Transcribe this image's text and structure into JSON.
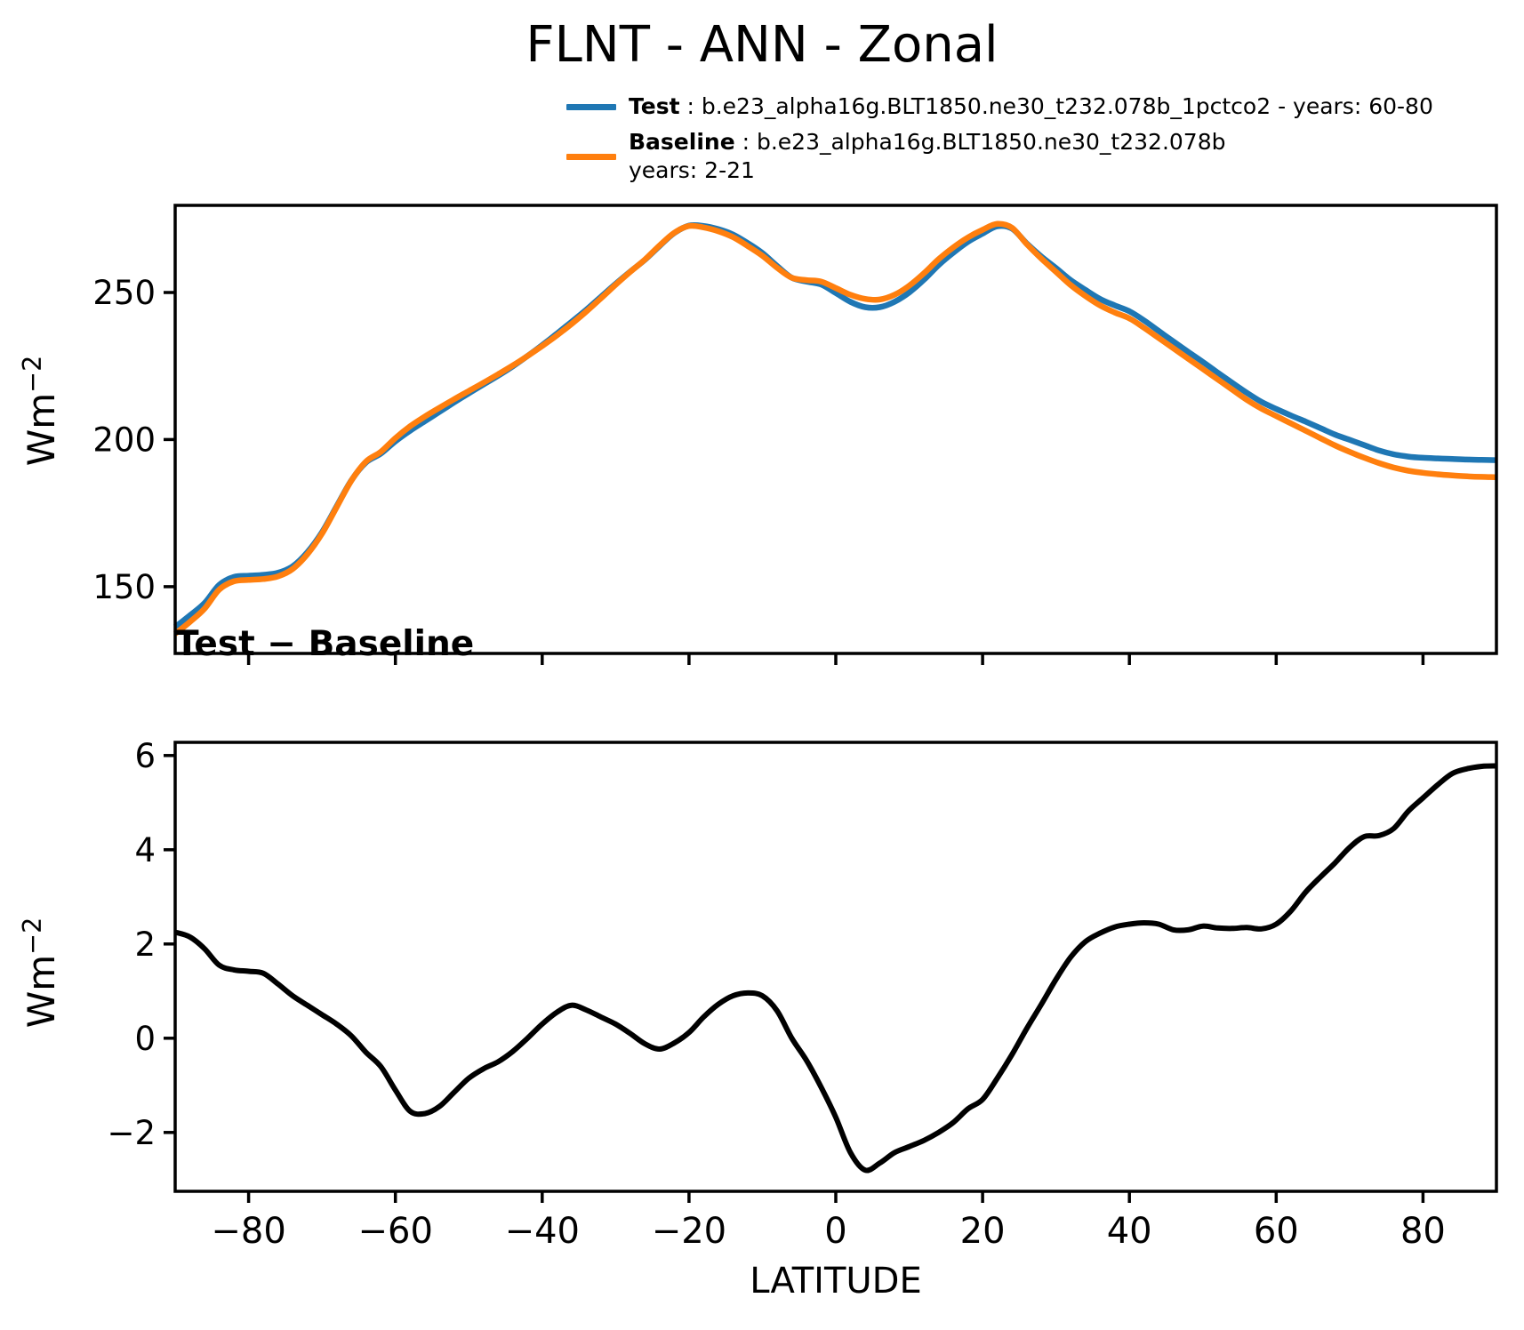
{
  "title": "FLNT - ANN - Zonal",
  "colors": {
    "test": "#1f77b4",
    "baseline": "#ff7f0e",
    "diff": "#000000",
    "axis": "#000000"
  },
  "legend": {
    "test_label": "Test",
    "test_rest": " : b.e23_alpha16g.BLT1850.ne30_t232.078b_1pctco2 - years: 60-80",
    "baseline_label": "Baseline",
    "baseline_rest": " : b.e23_alpha16g.BLT1850.ne30_t232.078b",
    "baseline_years": "years: 2-21"
  },
  "axis_labels": {
    "y_base": "Wm",
    "y_exp": "−2",
    "x_label": "LATITUDE"
  },
  "chart_data": [
    {
      "type": "line",
      "panel": "top",
      "title": "",
      "ylabel": "Wm−2",
      "xlabel": "",
      "xlim": [
        -90,
        90
      ],
      "ylim": [
        127.3,
        279.6
      ],
      "grid": false,
      "legend_position": "upper right, above axes",
      "x": [
        -90,
        -88,
        -86,
        -84,
        -82,
        -80,
        -78,
        -76,
        -74,
        -72,
        -70,
        -68,
        -66,
        -64,
        -62,
        -60,
        -58,
        -56,
        -54,
        -52,
        -50,
        -48,
        -46,
        -44,
        -42,
        -40,
        -38,
        -36,
        -34,
        -32,
        -30,
        -28,
        -26,
        -24,
        -22,
        -20,
        -18,
        -16,
        -14,
        -12,
        -10,
        -8,
        -6,
        -4,
        -2,
        0,
        2,
        4,
        6,
        8,
        10,
        12,
        14,
        16,
        18,
        20,
        22,
        24,
        26,
        28,
        30,
        32,
        34,
        36,
        38,
        40,
        42,
        44,
        46,
        48,
        50,
        52,
        54,
        56,
        58,
        60,
        62,
        64,
        66,
        68,
        70,
        72,
        74,
        76,
        78,
        80,
        82,
        84,
        86,
        88,
        90
      ],
      "yticks": {
        "values": [
          150,
          200,
          250
        ],
        "labels": [
          "150",
          "200",
          "250"
        ]
      },
      "xticks": {
        "values": [
          -80,
          -60,
          -40,
          -20,
          0,
          20,
          40,
          60,
          80
        ],
        "labels": []
      },
      "series": [
        {
          "name": "Test",
          "color_key": "test",
          "values": [
            136.3,
            140.2,
            144.4,
            150.6,
            153.3,
            153.7,
            154.0,
            154.7,
            156.9,
            161.7,
            168.5,
            177.3,
            186.1,
            192.2,
            195.2,
            199.4,
            203.0,
            206.2,
            209.4,
            212.6,
            215.7,
            218.7,
            221.7,
            224.9,
            228.4,
            232.1,
            236.0,
            240.0,
            244.1,
            248.5,
            252.9,
            257.1,
            261.1,
            265.8,
            270.2,
            272.7,
            272.6,
            271.5,
            269.7,
            266.8,
            263.4,
            259.0,
            255.0,
            253.7,
            252.7,
            249.8,
            246.8,
            245.0,
            245.0,
            246.8,
            250.0,
            254.3,
            259.3,
            263.5,
            267.2,
            270.0,
            272.5,
            271.7,
            266.7,
            262.2,
            258.3,
            254.2,
            250.9,
            247.8,
            245.6,
            243.6,
            240.5,
            236.9,
            233.3,
            229.8,
            226.4,
            222.8,
            219.3,
            215.9,
            212.8,
            210.4,
            208.2,
            206.1,
            203.9,
            201.7,
            199.9,
            198.1,
            196.3,
            195.0,
            194.2,
            193.8,
            193.6,
            193.4,
            193.2,
            193.1,
            193.0
          ]
        },
        {
          "name": "Baseline",
          "color_key": "baseline",
          "values": [
            134.0,
            138.0,
            142.5,
            149.0,
            151.8,
            152.3,
            152.6,
            153.5,
            156.0,
            161.0,
            168.0,
            177.0,
            186.0,
            192.5,
            195.8,
            200.5,
            204.5,
            207.8,
            210.8,
            213.7,
            216.5,
            219.3,
            222.2,
            225.2,
            228.4,
            231.8,
            235.4,
            239.3,
            243.5,
            248.0,
            252.6,
            257.0,
            261.2,
            266.0,
            270.3,
            272.6,
            272.1,
            270.8,
            268.8,
            265.8,
            262.5,
            258.4,
            255.0,
            254.2,
            253.7,
            251.5,
            249.2,
            247.8,
            247.6,
            249.2,
            252.3,
            256.5,
            261.3,
            265.3,
            268.7,
            271.3,
            273.3,
            272.0,
            266.5,
            261.5,
            257.0,
            252.5,
            248.8,
            245.6,
            243.2,
            241.2,
            238.0,
            234.5,
            231.0,
            227.5,
            224.0,
            220.5,
            217.0,
            213.5,
            210.5,
            208.0,
            205.5,
            203.0,
            200.5,
            198.0,
            195.8,
            193.8,
            192.0,
            190.5,
            189.4,
            188.7,
            188.2,
            187.8,
            187.5,
            187.3,
            187.2
          ]
        }
      ]
    },
    {
      "type": "line",
      "panel": "bottom",
      "title": "Test − Baseline",
      "ylabel": "Wm−2",
      "xlabel": "LATITUDE",
      "xlim": [
        -90,
        90
      ],
      "ylim": [
        -3.25,
        6.28
      ],
      "grid": false,
      "x": [
        -90,
        -88,
        -86,
        -84,
        -82,
        -80,
        -78,
        -76,
        -74,
        -72,
        -70,
        -68,
        -66,
        -64,
        -62,
        -60,
        -58,
        -56,
        -54,
        -52,
        -50,
        -48,
        -46,
        -44,
        -42,
        -40,
        -38,
        -36,
        -34,
        -32,
        -30,
        -28,
        -26,
        -24,
        -22,
        -20,
        -18,
        -16,
        -14,
        -12,
        -10,
        -8,
        -6,
        -4,
        -2,
        0,
        2,
        4,
        6,
        8,
        10,
        12,
        14,
        16,
        18,
        20,
        22,
        24,
        26,
        28,
        30,
        32,
        34,
        36,
        38,
        40,
        42,
        44,
        46,
        48,
        50,
        52,
        54,
        56,
        58,
        60,
        62,
        64,
        66,
        68,
        70,
        72,
        74,
        76,
        78,
        80,
        82,
        84,
        86,
        88,
        90
      ],
      "yticks": {
        "values": [
          -2,
          0,
          2,
          4,
          6
        ],
        "labels": [
          "−2",
          "0",
          "2",
          "4",
          "6"
        ]
      },
      "xticks": {
        "values": [
          -80,
          -60,
          -40,
          -20,
          0,
          20,
          40,
          60,
          80
        ],
        "labels": [
          "−80",
          "−60",
          "−40",
          "−20",
          "0",
          "20",
          "40",
          "60",
          "80"
        ]
      },
      "series": [
        {
          "name": "Test − Baseline",
          "color_key": "diff",
          "values": [
            2.25,
            2.15,
            1.9,
            1.55,
            1.45,
            1.42,
            1.38,
            1.15,
            0.9,
            0.7,
            0.5,
            0.3,
            0.05,
            -0.3,
            -0.6,
            -1.1,
            -1.55,
            -1.6,
            -1.45,
            -1.15,
            -0.85,
            -0.65,
            -0.5,
            -0.28,
            0.0,
            0.3,
            0.55,
            0.7,
            0.6,
            0.45,
            0.3,
            0.1,
            -0.12,
            -0.23,
            -0.1,
            0.12,
            0.45,
            0.72,
            0.9,
            0.96,
            0.9,
            0.58,
            0.0,
            -0.47,
            -1.04,
            -1.68,
            -2.43,
            -2.8,
            -2.65,
            -2.43,
            -2.3,
            -2.17,
            -2.0,
            -1.79,
            -1.5,
            -1.3,
            -0.85,
            -0.35,
            0.2,
            0.72,
            1.25,
            1.72,
            2.05,
            2.23,
            2.36,
            2.42,
            2.45,
            2.42,
            2.3,
            2.3,
            2.38,
            2.34,
            2.33,
            2.35,
            2.32,
            2.42,
            2.7,
            3.1,
            3.42,
            3.72,
            4.05,
            4.28,
            4.3,
            4.45,
            4.82,
            5.1,
            5.38,
            5.62,
            5.72,
            5.77,
            5.78
          ]
        }
      ]
    }
  ]
}
